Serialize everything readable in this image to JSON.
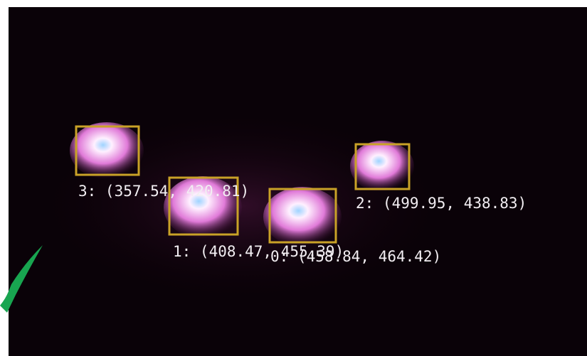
{
  "detections": [
    {
      "label": "3: (357.54, 420.81)"
    },
    {
      "label": "1: (408.47, 455.39)"
    },
    {
      "label": "0: (458.84, 464.42)"
    },
    {
      "label": "2: (499.95, 438.83)"
    }
  ]
}
